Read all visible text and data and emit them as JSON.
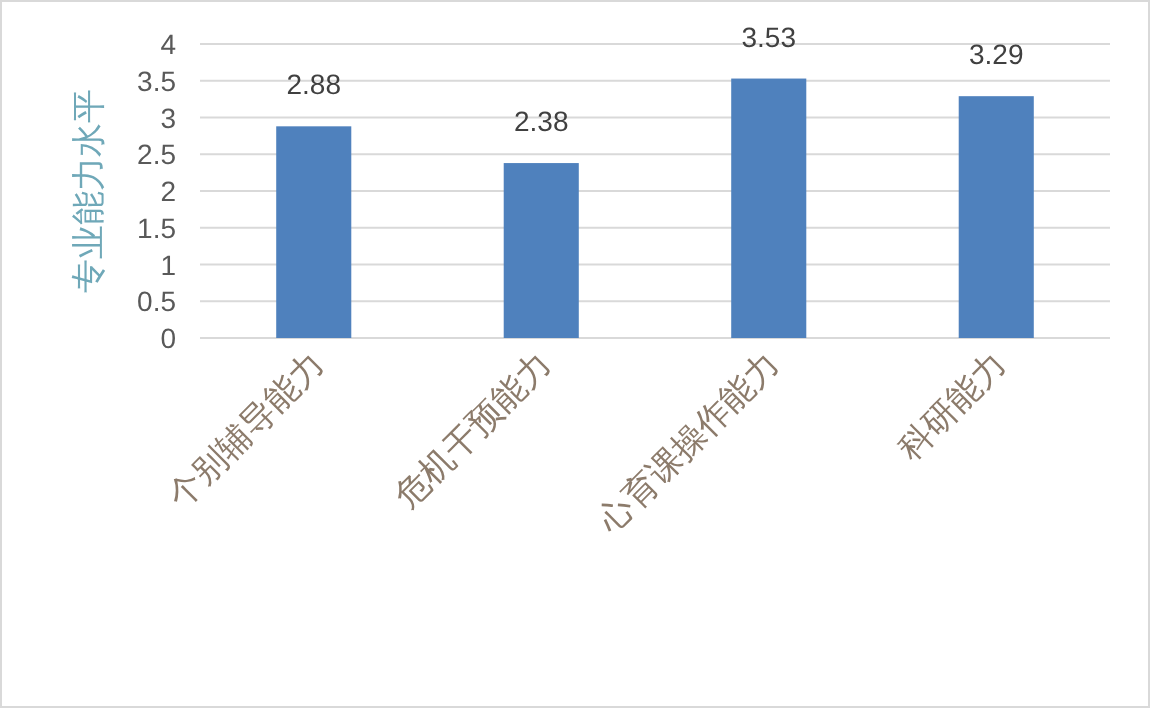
{
  "chart_data": {
    "type": "bar",
    "ylabel": "专业能力水平",
    "categories": [
      "个别辅导能力",
      "危机干预能力",
      "心育课操作能力",
      "科研能力"
    ],
    "values": [
      2.88,
      2.38,
      3.53,
      3.29
    ],
    "color": "#4f81bd",
    "ylim": [
      0,
      4
    ],
    "yticks": [
      0,
      0.5,
      1,
      1.5,
      2,
      2.5,
      3,
      3.5,
      4
    ],
    "grid": "y",
    "data_labels": true
  }
}
